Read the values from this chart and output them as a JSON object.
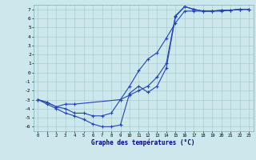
{
  "title": "Graphe des températures (°C)",
  "bg_color": "#cce8ec",
  "line_color": "#2244bb",
  "grid_color": "#aacccc",
  "xlim": [
    -0.5,
    23.5
  ],
  "ylim": [
    -6.5,
    7.5
  ],
  "xticks": [
    0,
    1,
    2,
    3,
    4,
    5,
    6,
    7,
    8,
    9,
    10,
    11,
    12,
    13,
    14,
    15,
    16,
    17,
    18,
    19,
    20,
    21,
    22,
    23
  ],
  "yticks": [
    -6,
    -5,
    -4,
    -3,
    -2,
    -1,
    0,
    1,
    2,
    3,
    4,
    5,
    6,
    7
  ],
  "line1_x": [
    0,
    1,
    2,
    3,
    4,
    5,
    6,
    7,
    8,
    9,
    10,
    11,
    12,
    13,
    14,
    15,
    16,
    17,
    18,
    19,
    20,
    21,
    22,
    23
  ],
  "line1_y": [
    -3.0,
    -3.5,
    -4.0,
    -4.5,
    -4.8,
    -5.2,
    -5.7,
    -6.0,
    -6.0,
    -5.8,
    -2.3,
    -1.5,
    -2.2,
    -1.5,
    0.5,
    6.2,
    7.3,
    7.0,
    6.8,
    6.8,
    6.9,
    6.9,
    7.0,
    7.0
  ],
  "line2_x": [
    0,
    1,
    2,
    3,
    4,
    9,
    10,
    11,
    12,
    13,
    14,
    15,
    16,
    17,
    18,
    19,
    20,
    21,
    22,
    23
  ],
  "line2_y": [
    -3.0,
    -3.3,
    -3.8,
    -3.5,
    -3.5,
    -3.0,
    -2.5,
    -2.0,
    -1.5,
    -0.5,
    1.0,
    6.3,
    7.3,
    7.0,
    6.8,
    6.8,
    6.8,
    6.9,
    7.0,
    7.0
  ],
  "line3_x": [
    0,
    1,
    2,
    3,
    4,
    5,
    6,
    7,
    8,
    9,
    10,
    11,
    12,
    13,
    14,
    15,
    16,
    17,
    18,
    19,
    20,
    21,
    22,
    23
  ],
  "line3_y": [
    -3.0,
    -3.3,
    -3.8,
    -4.0,
    -4.5,
    -4.5,
    -4.8,
    -4.8,
    -4.5,
    -3.0,
    -1.5,
    0.2,
    1.5,
    2.2,
    3.8,
    5.5,
    6.8,
    6.8,
    6.8,
    6.8,
    6.9,
    6.9,
    7.0,
    7.0
  ]
}
